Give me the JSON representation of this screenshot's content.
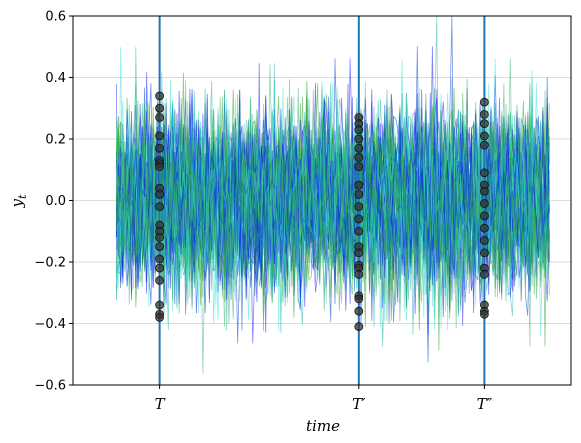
{
  "chart_data": {
    "type": "line",
    "title": "",
    "xlabel": "time",
    "ylabel": "y",
    "ylabel_subscript": "t",
    "ylim": [
      -0.6,
      0.6
    ],
    "xlim": [
      -0.1,
      1.05
    ],
    "yticks": [
      -0.6,
      -0.4,
      -0.2,
      0.0,
      0.2,
      0.4,
      0.6
    ],
    "ytick_labels": [
      "−0.6",
      "−0.4",
      "−0.2",
      "0.0",
      "0.2",
      "0.4",
      "0.6"
    ],
    "grid": "horizontal",
    "vertical_markers": [
      {
        "x": 0.1,
        "label": "T"
      },
      {
        "x": 0.56,
        "label": "T′"
      },
      {
        "x": 0.85,
        "label": "T″"
      }
    ],
    "vline_color": "#1f77b4",
    "series_colors": [
      "#1a1aff",
      "#2ca02c",
      "#20b2aa",
      "#40e0d0",
      "#0044cc",
      "#3cb371"
    ],
    "series_count": 60,
    "noise_std": 0.14,
    "dot_color": "#333333",
    "dots_at_markers": [
      [
        0.34,
        0.3,
        0.27,
        0.21,
        0.17,
        0.13,
        0.12,
        0.11,
        0.04,
        0.02,
        -0.02,
        -0.08,
        -0.1,
        -0.12,
        -0.15,
        -0.19,
        -0.22,
        -0.26,
        -0.34,
        -0.37,
        -0.38
      ],
      [
        0.27,
        0.25,
        0.23,
        0.2,
        0.17,
        0.14,
        0.11,
        0.05,
        0.02,
        -0.02,
        -0.06,
        -0.1,
        -0.15,
        -0.17,
        -0.21,
        -0.22,
        -0.24,
        -0.31,
        -0.32,
        -0.36,
        -0.41
      ],
      [
        0.32,
        0.28,
        0.25,
        0.21,
        0.18,
        0.09,
        0.05,
        0.03,
        -0.01,
        -0.05,
        -0.09,
        -0.13,
        -0.17,
        -0.22,
        -0.24,
        -0.34,
        -0.36,
        -0.37
      ]
    ]
  }
}
